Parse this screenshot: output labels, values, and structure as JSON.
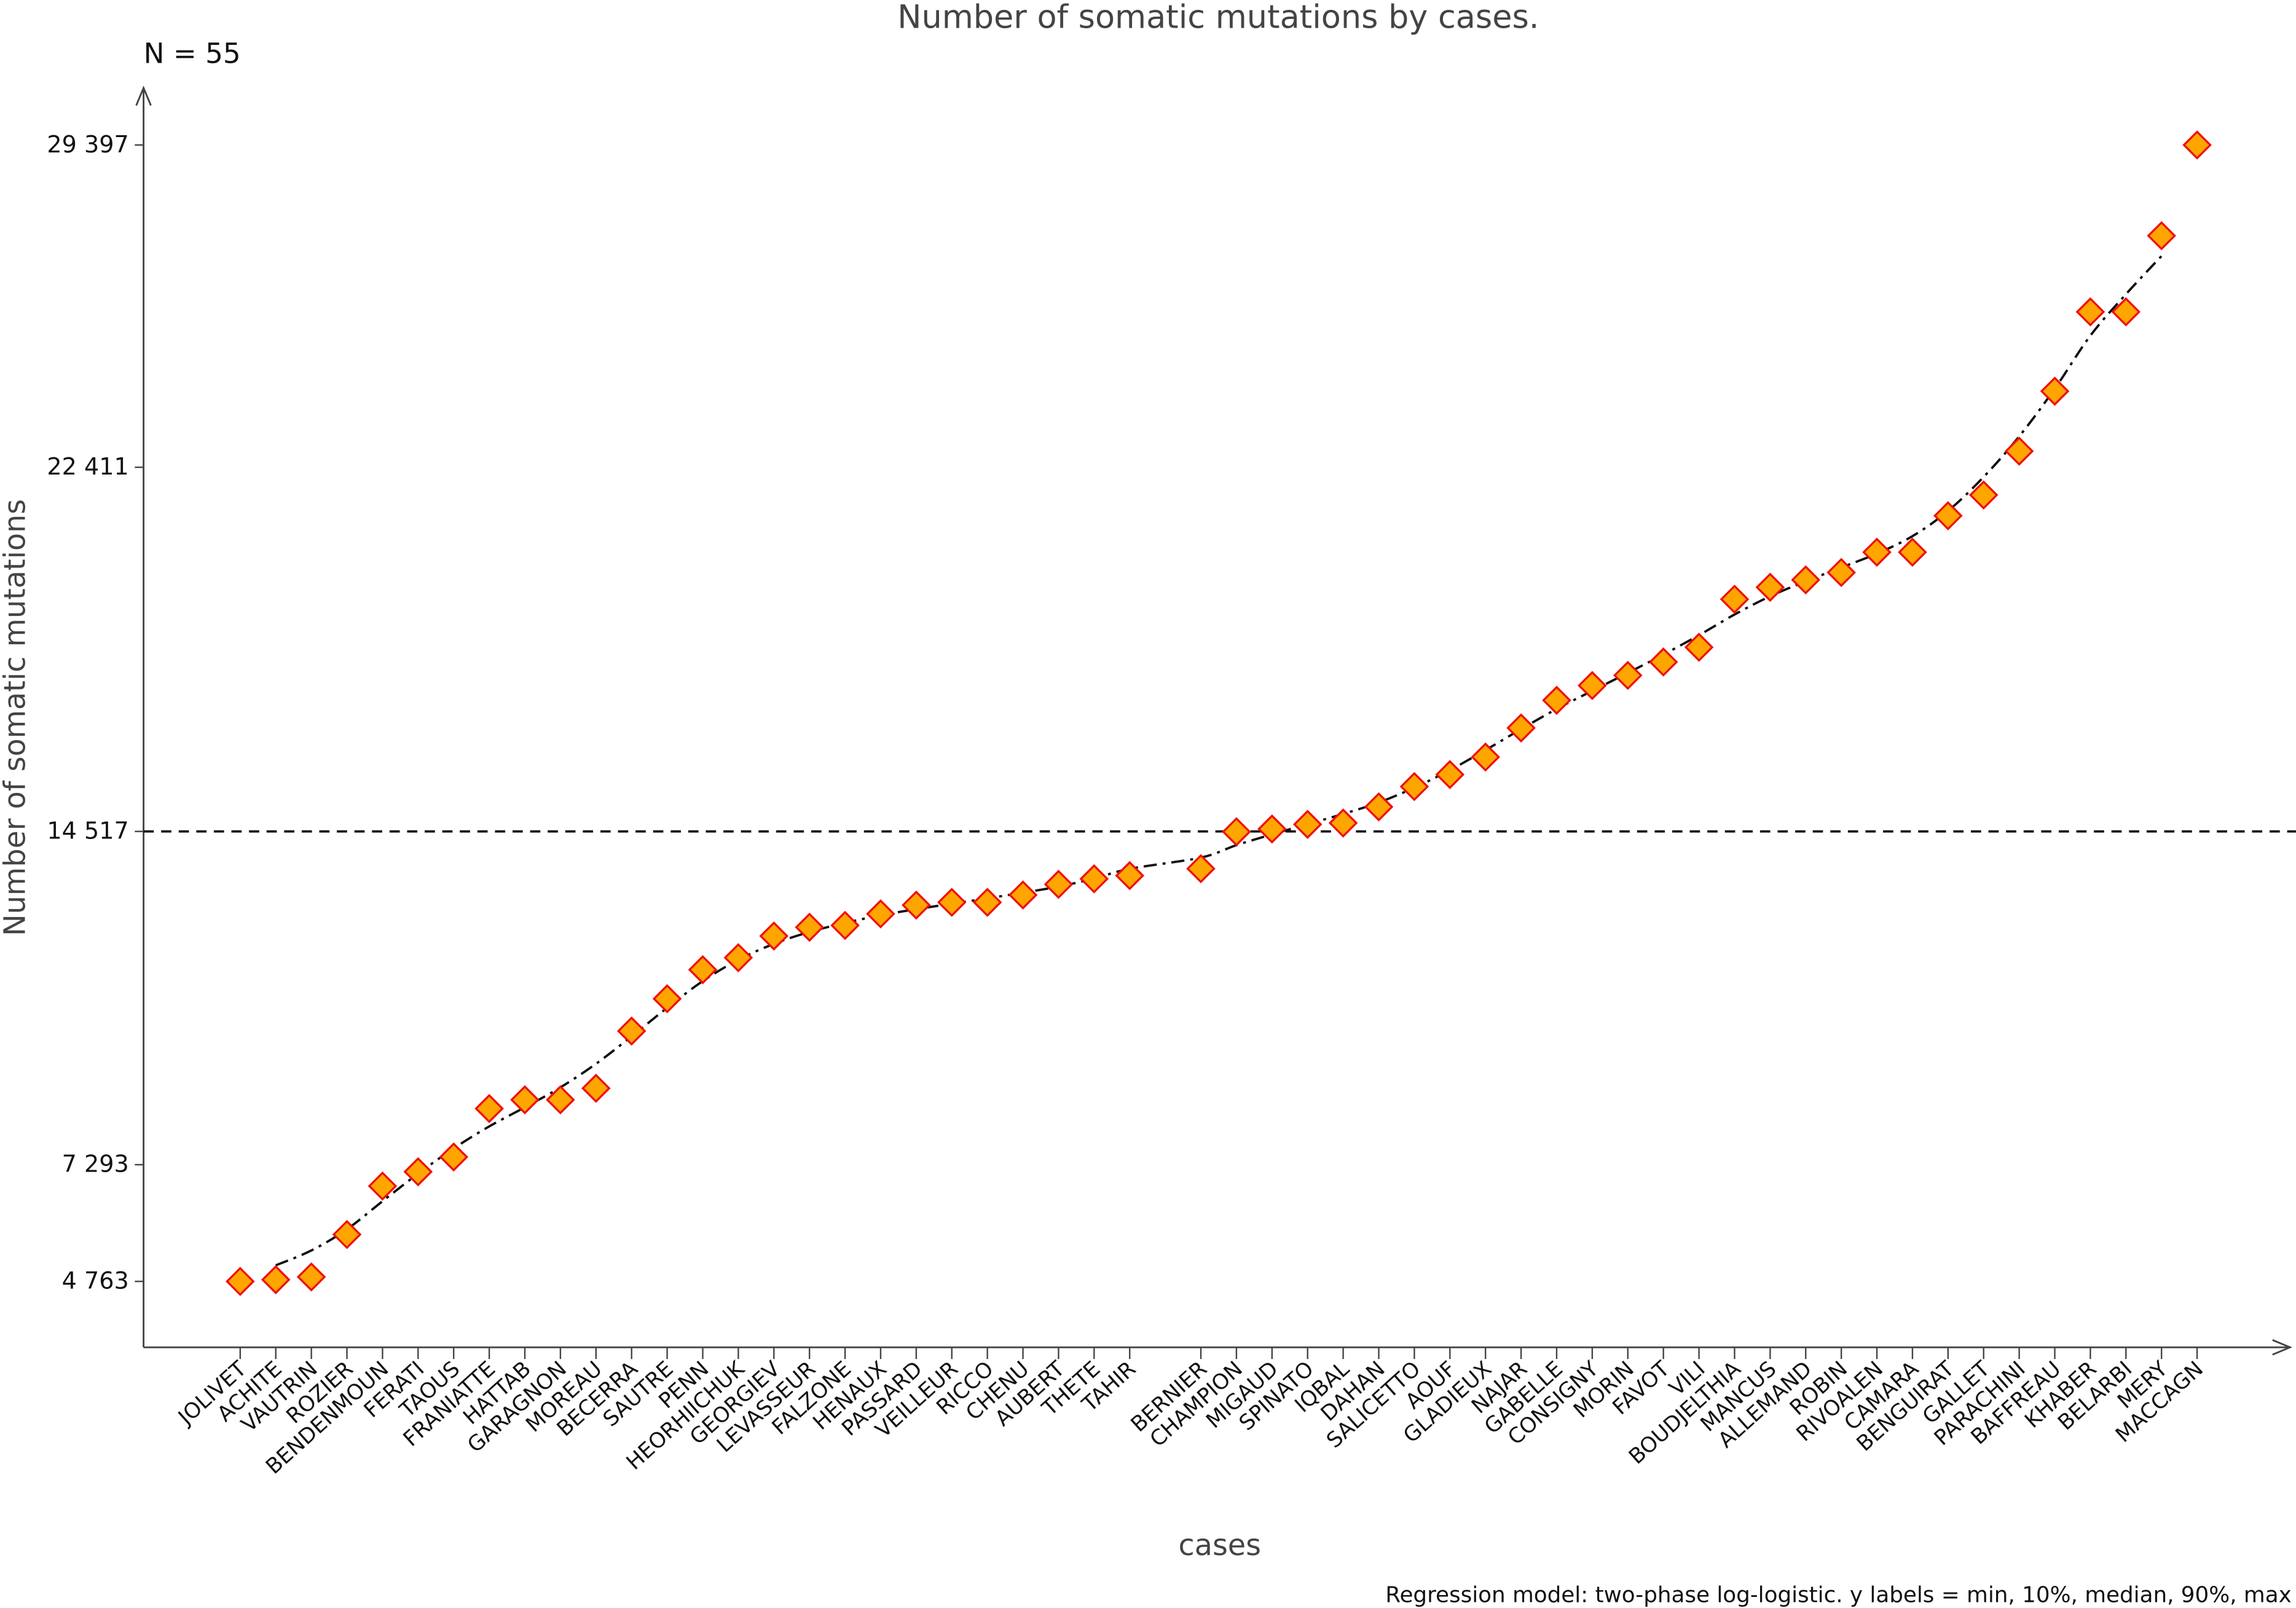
{
  "chart_data": {
    "type": "scatter",
    "title": "Number of somatic mutations by cases.",
    "n_label": "N =  55",
    "xlabel": "cases",
    "ylabel": "Number of somatic mutations",
    "footnote": "Regression model: two-phase log-logistic. y labels = min, 10%, median, 90%, max",
    "y_ticks": [
      {
        "value": 4763,
        "label": "4 763"
      },
      {
        "value": 7293,
        "label": "7 293"
      },
      {
        "value": 14517,
        "label": "14 517"
      },
      {
        "value": 22411,
        "label": "22 411"
      },
      {
        "value": 29397,
        "label": "29 397"
      }
    ],
    "median_line": 14517,
    "ylim": [
      3300,
      30600
    ],
    "grid": false,
    "marker": {
      "shape": "diamond",
      "fill": "#FFA500",
      "stroke": "#F01010"
    },
    "fit_line_style": "dash-dot",
    "categories": [
      "JOLIVET",
      "ACHITE",
      "VAUTRIN",
      "ROZIER",
      "BENDENMOUN",
      "FERATI",
      "TAOUS",
      "FRANIATTE",
      "HATTAB",
      "GARAGNON",
      "MOREAU",
      "BECERRA",
      "SAUTRE",
      "PENN",
      "HEORHIICHUK",
      "GEORGIEV",
      "LEVASSEUR",
      "FALZONE",
      "HENAUX",
      "PASSARD",
      "VEILLEUR",
      "RICCO",
      "CHENU",
      "AUBERT",
      "THETE",
      "TAHIR",
      "BERNIER",
      "CHAMPION",
      "MIGAUD",
      "SPINATO",
      "IQBAL",
      "DAHAN",
      "SALICETTO",
      "AOUF",
      "GLADIEUX",
      "NAJAR",
      "GABELLE",
      "CONSIGNY",
      "MORIN",
      "FAVOT",
      "VILI",
      "BOUDJELTHIA",
      "MANCUS",
      "ALLEMAND",
      "ROBIN",
      "RIVOALEN",
      "CAMARA",
      "BENGUIRAT",
      "GALLET",
      "PARACHINI",
      "BAFFREAU",
      "KHABER",
      "BELARBI",
      "MERY",
      "MACCAGN"
    ],
    "values": [
      4763,
      4800,
      4860,
      5780,
      6830,
      7140,
      7460,
      8510,
      8700,
      8700,
      8950,
      10190,
      10890,
      11520,
      11780,
      12250,
      12440,
      12480,
      12730,
      12920,
      12980,
      12980,
      13140,
      13370,
      13490,
      13560,
      13710,
      14510,
      14570,
      14670,
      14700,
      15050,
      15490,
      15750,
      16130,
      16760,
      17360,
      17680,
      17900,
      18190,
      18510,
      19550,
      19810,
      19970,
      20130,
      20570,
      20570,
      21360,
      21810,
      22760,
      24060,
      25780,
      25780,
      27430,
      29397
    ]
  }
}
